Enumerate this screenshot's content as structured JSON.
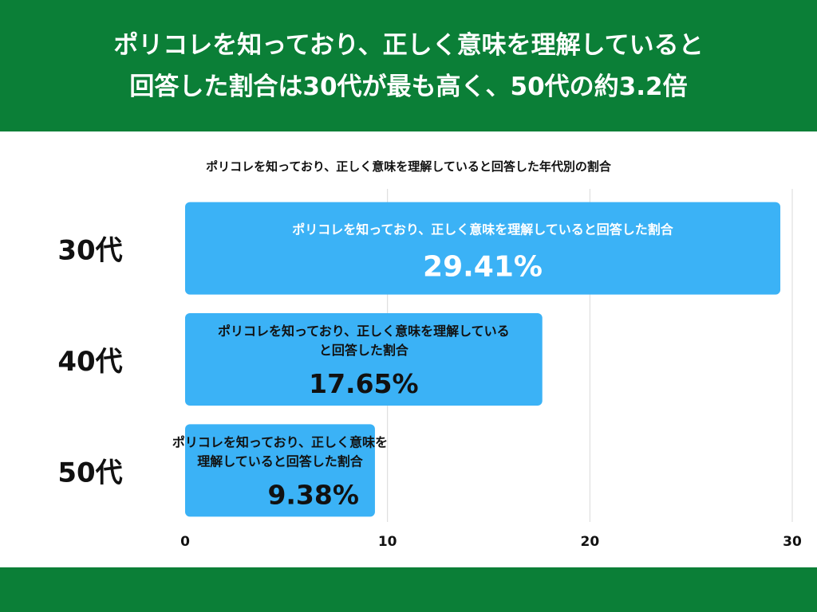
{
  "header": {
    "title_line1": "ポリコレを知っており、正しく意味を理解していると",
    "title_line2": "回答した割合は30代が最も高く、50代の約3.2倍"
  },
  "colors": {
    "header_bg": "#0b7f37",
    "bar": "#3bb2f6",
    "grid": "#d9d9d9"
  },
  "chart_data": {
    "type": "bar",
    "orientation": "horizontal",
    "title": "ポリコレを知っており、正しく意味を理解していると回答した年代別の割合",
    "categories": [
      "30代",
      "40代",
      "50代"
    ],
    "values": [
      29.41,
      17.65,
      9.38
    ],
    "value_labels": [
      "29.41%",
      "17.65%",
      "9.38%"
    ],
    "bar_text": "ポリコレを知っており、正しく意味を理解していると回答した割合",
    "bar_text_lines": [
      [
        "ポリコレを知っており、正しく意味を理解していると回答した割合"
      ],
      [
        "ポリコレを知っており、正しく意味を理解している",
        "と回答した割合"
      ],
      [
        "ポリコレを知っており、正しく意味を",
        "理解していると回答した割合"
      ]
    ],
    "xlim": [
      0,
      30
    ],
    "xticks": [
      0,
      10,
      20,
      30
    ],
    "grid": true,
    "legend": "none"
  }
}
